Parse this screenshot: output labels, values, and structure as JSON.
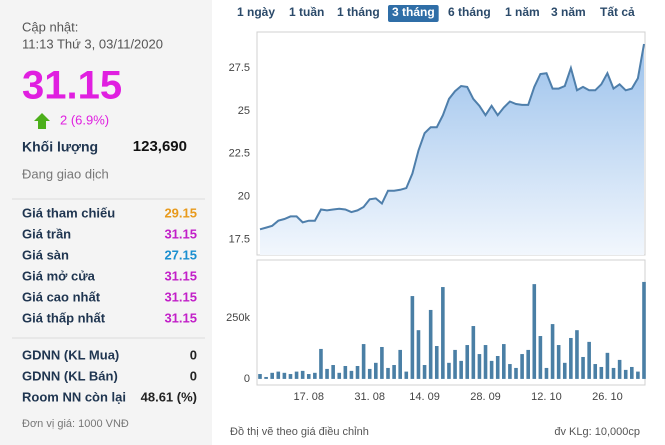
{
  "panel": {
    "updated_label": "Cập nhật:",
    "updated_time": "11:13 Thứ 3, 03/11/2020",
    "price": "31.15",
    "price_color": "#e01fe0",
    "change": "2 (6.9%)",
    "volume_label": "Khối lượng",
    "volume": "123,690",
    "status": "Đang giao dịch",
    "price_rows": [
      {
        "label": "Giá tham chiếu",
        "value": "29.15",
        "color": "#e89a1c"
      },
      {
        "label": "Giá trần",
        "value": "31.15",
        "color": "#c21fc8"
      },
      {
        "label": "Giá sàn",
        "value": "27.15",
        "color": "#1a8fd0"
      },
      {
        "label": "Giá mở cửa",
        "value": "31.15",
        "color": "#c21fc8"
      },
      {
        "label": "Giá cao nhất",
        "value": "31.15",
        "color": "#c21fc8"
      },
      {
        "label": "Giá thấp nhất",
        "value": "31.15",
        "color": "#c21fc8"
      }
    ],
    "foreign_rows": [
      {
        "label": "GDNN (KL Mua)",
        "value": "0"
      },
      {
        "label": "GDNN (KL Bán)",
        "value": "0"
      },
      {
        "label": "Room NN còn lại",
        "value": "48.61 (%)"
      }
    ],
    "unit_note": "Đơn vị giá: 1000 VNĐ"
  },
  "tabs": {
    "items": [
      "1 ngày",
      "1 tuần",
      "1 tháng",
      "3 tháng",
      "6 tháng",
      "1 năm",
      "3 năm",
      "Tất cả"
    ],
    "active": 3
  },
  "footer_left": "Đồ thị vẽ theo giá điều chỉnh",
  "footer_right": "đv KLg: 10,000cp",
  "chart_data": [
    {
      "type": "area",
      "color": "#4f7fab",
      "values": [
        18.1,
        18.2,
        18.3,
        18.6,
        18.7,
        18.85,
        18.85,
        18.5,
        18.6,
        18.6,
        19.25,
        19.2,
        19.25,
        19.3,
        19.25,
        19.1,
        19.2,
        19.4,
        19.85,
        19.9,
        19.6,
        20.35,
        20.35,
        20.4,
        20.5,
        21.35,
        22.7,
        23.7,
        24.05,
        24.05,
        24.75,
        25.7,
        26.15,
        26.45,
        26.4,
        25.7,
        25.3,
        24.75,
        25.3,
        24.75,
        25.2,
        25.55,
        25.4,
        25.35,
        25.35,
        26.4,
        27.15,
        27.2,
        26.3,
        26.3,
        26.45,
        27.5,
        26.2,
        26.4,
        26.2,
        26.2,
        26.55,
        27.2,
        26.3,
        26.55,
        26.2,
        26.3,
        26.9,
        28.9
      ],
      "ylim": [
        16.6,
        29.6
      ],
      "yticks": [
        17.5,
        20,
        22.5,
        25,
        27.5
      ]
    },
    {
      "type": "bar",
      "color": "#4a7fa5",
      "categories": [
        null,
        null,
        null,
        null,
        null,
        null,
        null,
        null,
        "17. 08",
        null,
        null,
        null,
        null,
        null,
        null,
        null,
        null,
        null,
        "31. 08",
        null,
        null,
        null,
        null,
        null,
        null,
        null,
        null,
        "14. 09",
        null,
        null,
        null,
        null,
        null,
        null,
        null,
        null,
        null,
        "28. 09",
        null,
        null,
        null,
        null,
        null,
        null,
        null,
        null,
        null,
        "12. 10",
        null,
        null,
        null,
        null,
        null,
        null,
        null,
        null,
        null,
        "26. 10",
        null,
        null,
        null,
        null,
        null,
        null
      ],
      "values": [
        20000,
        8000,
        25000,
        30000,
        25000,
        20000,
        30000,
        33000,
        20000,
        25000,
        123000,
        41000,
        57000,
        25000,
        53000,
        33000,
        53000,
        143000,
        41000,
        66000,
        131000,
        45000,
        57000,
        119000,
        30000,
        340000,
        200000,
        57000,
        283000,
        135000,
        377000,
        66000,
        119000,
        74000,
        139000,
        217000,
        102000,
        139000,
        74000,
        94000,
        143000,
        61000,
        45000,
        102000,
        119000,
        389000,
        176000,
        45000,
        225000,
        139000,
        66000,
        168000,
        200000,
        90000,
        152000,
        61000,
        49000,
        107000,
        45000,
        78000,
        37000,
        49000,
        30000,
        398000
      ],
      "ylim": [
        -25000,
        488000
      ],
      "yticks": [
        0,
        {
          "value": 250000,
          "label": "250k"
        }
      ]
    }
  ]
}
